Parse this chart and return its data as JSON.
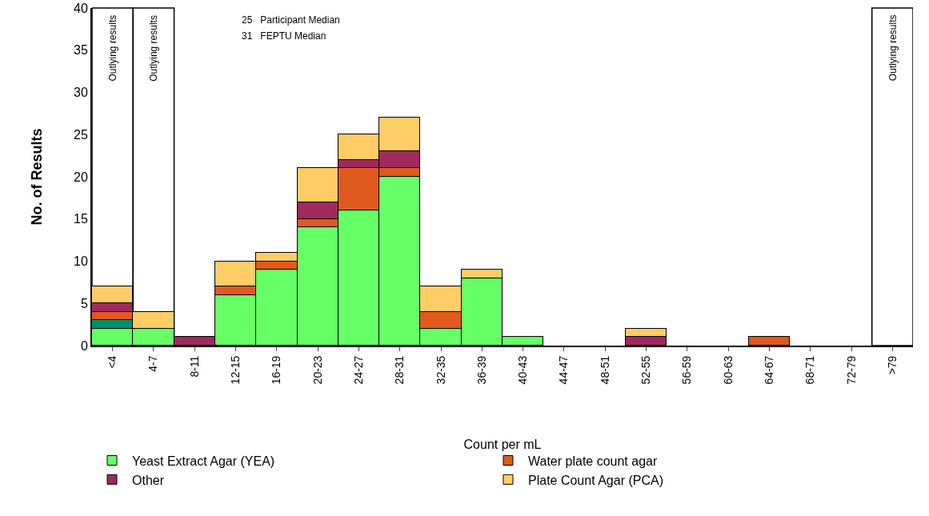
{
  "chart_data": {
    "type": "bar",
    "stacked": true,
    "xlabel": "Count per mL",
    "ylabel": "No. of Results",
    "categories": [
      "<4",
      "4-7",
      "8-11",
      "12-15",
      "16-19",
      "20-23",
      "24-27",
      "28-31",
      "32-35",
      "36-39",
      "40-43",
      "44-47",
      "48-51",
      "52-55",
      "56-59",
      "60-63",
      "64-67",
      "68-71",
      "72-79",
      ">79"
    ],
    "series": [
      {
        "name": "Yeast Extract Agar (YEA)",
        "color": "#66ff66",
        "values": [
          2,
          2,
          0,
          6,
          9,
          14,
          16,
          20,
          2,
          8,
          1,
          0,
          0,
          0,
          0,
          0,
          0,
          0,
          0,
          0
        ]
      },
      {
        "color": "#00906e",
        "values": [
          1,
          0,
          0,
          0,
          0,
          0,
          0,
          0,
          0,
          0,
          0,
          0,
          0,
          0,
          0,
          0,
          0,
          0,
          0,
          0
        ]
      },
      {
        "name": "Water plate count agar",
        "color": "#e05a1e",
        "values": [
          1,
          0,
          0,
          1,
          1,
          1,
          5,
          1,
          2,
          0,
          0,
          0,
          0,
          0,
          0,
          0,
          1,
          0,
          0,
          0
        ]
      },
      {
        "name": "Other",
        "color": "#a0295f",
        "values": [
          1,
          0,
          1,
          0,
          0,
          2,
          1,
          2,
          0,
          0,
          0,
          0,
          0,
          1,
          0,
          0,
          0,
          0,
          0,
          0
        ]
      },
      {
        "name": "Plate Count Agar (PCA)",
        "color": "#ffcc66",
        "values": [
          2,
          2,
          0,
          3,
          1,
          4,
          3,
          4,
          3,
          1,
          0,
          0,
          0,
          1,
          0,
          0,
          0,
          0,
          0,
          0
        ]
      }
    ],
    "ylim": [
      0,
      40
    ],
    "yticks": [
      0,
      5,
      10,
      15,
      20,
      25,
      30,
      35,
      40
    ],
    "grid": false,
    "legend": "bottom",
    "bands": [
      {
        "axis": "x",
        "from": "<4",
        "to": "<4",
        "label": "Outlying results",
        "color": "#ffffff"
      },
      {
        "axis": "x",
        "from": "4-7",
        "to": "4-7",
        "label": "Outlying results",
        "color": "#ffffff"
      },
      {
        "axis": "x",
        "from": ">79",
        "to": ">79",
        "label": "Outlying results",
        "color": "#ffffff"
      }
    ],
    "annotations": [
      "25   Participant Median",
      "31   FEPTU Median"
    ]
  }
}
